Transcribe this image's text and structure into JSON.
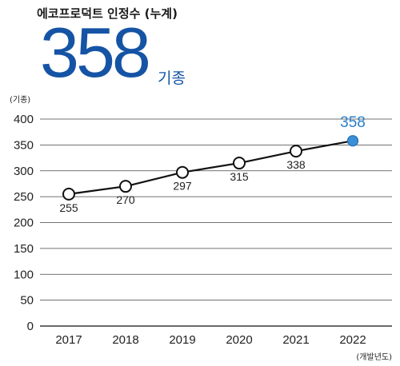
{
  "header": {
    "title": "에코프로덕트 인정수 (누계)",
    "total_value": "358",
    "total_unit": "기종"
  },
  "chart_data": {
    "type": "line",
    "categories": [
      "2017",
      "2018",
      "2019",
      "2020",
      "2021",
      "2022"
    ],
    "values": [
      255,
      270,
      297,
      315,
      338,
      358
    ],
    "data_labels": [
      "255",
      "270",
      "297",
      "315",
      "338",
      "358"
    ],
    "y_ticks": [
      "0",
      "50",
      "100",
      "150",
      "200",
      "250",
      "300",
      "350",
      "400"
    ],
    "ylim": [
      0,
      400
    ],
    "ylabel": "(기종)",
    "xlabel": "(개발년도)",
    "grid": true,
    "colors": {
      "line": "#111111",
      "marker_fill": "#ffffff",
      "highlight_fill": "#3b8fd6",
      "highlight_label": "#2a7fc9",
      "grid": "#444444",
      "accent": "#1554a5"
    }
  }
}
